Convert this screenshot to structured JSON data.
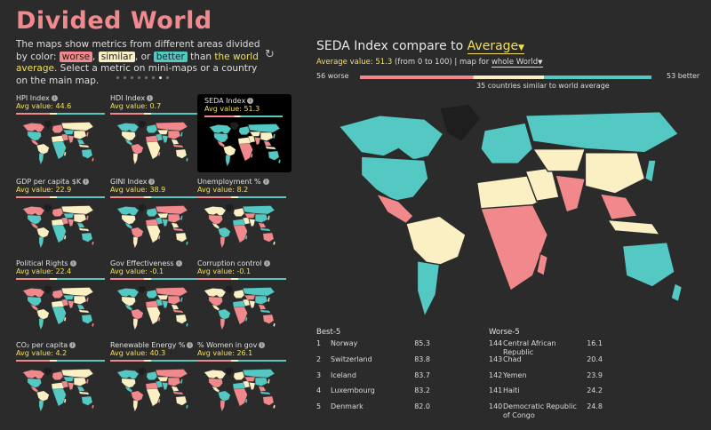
{
  "app": {
    "title": "Divided World"
  },
  "intro": {
    "text1": "The maps show metrics from different areas divided by color: ",
    "worse": "worse",
    "comma": ", ",
    "similar": "similar",
    "or": ", or ",
    "better": "better",
    "than": " than ",
    "world_avg": "the world average",
    "text2": ". Select a metric on mini-maps or a country on the main map."
  },
  "colors": {
    "worse": "#f0888c",
    "similar": "#fbefc4",
    "better": "#54c8c2",
    "nodata": "#1e1e1e",
    "accent": "#f2e05a"
  },
  "icons": {
    "refresh": "refresh-icon",
    "info": "info-icon",
    "dropdown": "caret-down-icon"
  },
  "pagination": {
    "pages": 8,
    "active": 7
  },
  "metrics": [
    {
      "label": "HPI Index",
      "avg": "Avg value: 44.6"
    },
    {
      "label": "HDI Index",
      "avg": "Avg value: 0.7"
    },
    {
      "label": "SEDA Index",
      "avg": "Avg value: 51.3",
      "selected": true
    },
    {
      "label": "GDP per capita $K",
      "avg": "Avg value: 22.9"
    },
    {
      "label": "GINI Index",
      "avg": "Avg value: 38.9"
    },
    {
      "label": "Unemployment %",
      "avg": "Avg value: 8.2"
    },
    {
      "label": "Political Rights",
      "avg": "Avg value: 22.4"
    },
    {
      "label": "Gov Effectiveness",
      "avg": "Avg value: -0.1"
    },
    {
      "label": "Corruption control",
      "avg": "Avg value: -0.1"
    },
    {
      "label": "CO₂ per capita",
      "avg": "Avg value: 4.2"
    },
    {
      "label": "Renewable Energy %",
      "avg": "Avg value: 40.3"
    },
    {
      "label": "% Women in gov",
      "avg": "Avg value: 26.1"
    }
  ],
  "main": {
    "title_prefix": "SEDA Index compare to ",
    "compare_value": "Average",
    "avg_prefix": "Average value: ",
    "avg_value": "51.3",
    "avg_suffix": " (from 0 to 100) | map for ",
    "scope": "whole World",
    "worse_count": "56 worse",
    "better_count": "53 better",
    "similar_text": "35 countries similar to world average",
    "scale": {
      "worse": 56,
      "similar": 35,
      "better": 53
    }
  },
  "best": {
    "title": "Best-5",
    "rows": [
      {
        "rank": "1",
        "name": "Norway",
        "value": "85.3"
      },
      {
        "rank": "2",
        "name": "Switzerland",
        "value": "83.8"
      },
      {
        "rank": "3",
        "name": "Iceland",
        "value": "83.7"
      },
      {
        "rank": "4",
        "name": "Luxembourg",
        "value": "83.2"
      },
      {
        "rank": "5",
        "name": "Denmark",
        "value": "82.0"
      }
    ]
  },
  "worst": {
    "title": "Worse-5",
    "rows": [
      {
        "rank": "144",
        "name": "Central African Republic",
        "value": "16.1"
      },
      {
        "rank": "143",
        "name": "Chad",
        "value": "20.4"
      },
      {
        "rank": "142",
        "name": "Yemen",
        "value": "23.9"
      },
      {
        "rank": "141",
        "name": "Haiti",
        "value": "24.2"
      },
      {
        "rank": "140",
        "name": "Democratic Republic of Congo",
        "value": "24.8"
      }
    ]
  }
}
